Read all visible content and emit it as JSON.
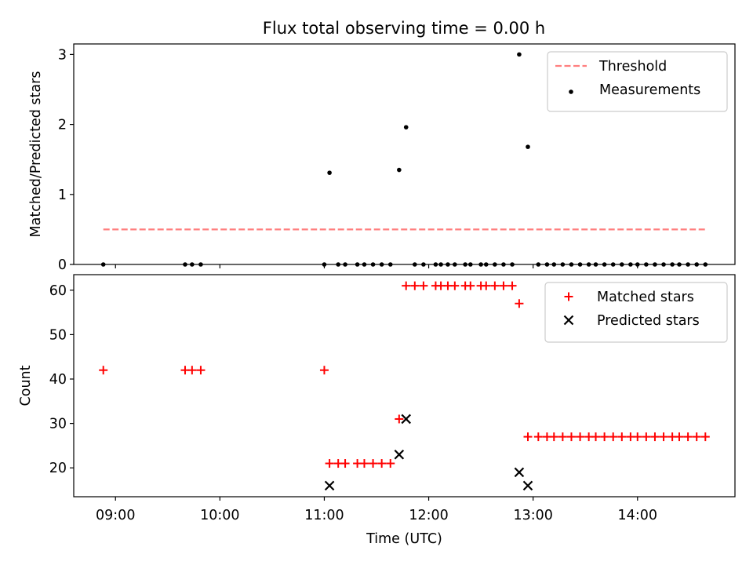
{
  "chart_data": [
    {
      "type": "scatter",
      "title": "Flux total observing time = 0.00 h",
      "xlabel": "",
      "ylabel": "Matched/Predicted stars",
      "xlim": [
        "08:36",
        "14:56"
      ],
      "ylim": [
        0,
        3.15
      ],
      "yticks": [
        0,
        1,
        2,
        3
      ],
      "xticks": [
        "09:00",
        "10:00",
        "11:00",
        "12:00",
        "13:00",
        "14:00"
      ],
      "tick_labels_x_shown": false,
      "legend_position": "upper right",
      "threshold": {
        "name": "Threshold",
        "value": 0.5,
        "x_start": "08:53",
        "x_end": "14:39",
        "color": "#ff7f7f",
        "style": "dashed"
      },
      "series": [
        {
          "name": "Measurements",
          "color": "#000000",
          "marker": "dot",
          "points": [
            [
              "08:53",
              0
            ],
            [
              "09:40",
              0
            ],
            [
              "09:44",
              0
            ],
            [
              "09:49",
              0
            ],
            [
              "11:00",
              0
            ],
            [
              "11:03",
              1.31
            ],
            [
              "11:08",
              0
            ],
            [
              "11:12",
              0
            ],
            [
              "11:19",
              0
            ],
            [
              "11:23",
              0
            ],
            [
              "11:28",
              0
            ],
            [
              "11:33",
              0
            ],
            [
              "11:38",
              0
            ],
            [
              "11:43",
              1.35
            ],
            [
              "11:47",
              1.96
            ],
            [
              "11:52",
              0
            ],
            [
              "11:57",
              0
            ],
            [
              "12:04",
              0
            ],
            [
              "12:07",
              0
            ],
            [
              "12:11",
              0
            ],
            [
              "12:15",
              0
            ],
            [
              "12:21",
              0
            ],
            [
              "12:24",
              0
            ],
            [
              "12:30",
              0
            ],
            [
              "12:33",
              0
            ],
            [
              "12:38",
              0
            ],
            [
              "12:43",
              0
            ],
            [
              "12:48",
              0
            ],
            [
              "12:52",
              3.0
            ],
            [
              "12:57",
              1.68
            ],
            [
              "13:03",
              0
            ],
            [
              "13:08",
              0
            ],
            [
              "13:12",
              0
            ],
            [
              "13:17",
              0
            ],
            [
              "13:22",
              0
            ],
            [
              "13:27",
              0
            ],
            [
              "13:32",
              0
            ],
            [
              "13:36",
              0
            ],
            [
              "13:41",
              0
            ],
            [
              "13:46",
              0
            ],
            [
              "13:51",
              0
            ],
            [
              "13:56",
              0
            ],
            [
              "14:00",
              0
            ],
            [
              "14:05",
              0
            ],
            [
              "14:10",
              0
            ],
            [
              "14:15",
              0
            ],
            [
              "14:20",
              0
            ],
            [
              "14:24",
              0
            ],
            [
              "14:29",
              0
            ],
            [
              "14:34",
              0
            ],
            [
              "14:39",
              0
            ]
          ]
        }
      ]
    },
    {
      "type": "scatter",
      "title": "",
      "xlabel": "Time (UTC)",
      "ylabel": "Count",
      "xlim": [
        "08:36",
        "14:56"
      ],
      "ylim": [
        13.5,
        63.5
      ],
      "yticks": [
        20,
        30,
        40,
        50,
        60
      ],
      "xticks": [
        "09:00",
        "10:00",
        "11:00",
        "12:00",
        "13:00",
        "14:00"
      ],
      "legend_position": "upper right",
      "series": [
        {
          "name": "Matched stars",
          "color": "#ff0000",
          "marker": "plus",
          "points": [
            [
              "08:53",
              42
            ],
            [
              "09:40",
              42
            ],
            [
              "09:44",
              42
            ],
            [
              "09:49",
              42
            ],
            [
              "11:00",
              42
            ],
            [
              "11:03",
              21
            ],
            [
              "11:08",
              21
            ],
            [
              "11:12",
              21
            ],
            [
              "11:19",
              21
            ],
            [
              "11:23",
              21
            ],
            [
              "11:28",
              21
            ],
            [
              "11:33",
              21
            ],
            [
              "11:38",
              21
            ],
            [
              "11:43",
              31
            ],
            [
              "11:47",
              61
            ],
            [
              "11:52",
              61
            ],
            [
              "11:57",
              61
            ],
            [
              "12:04",
              61
            ],
            [
              "12:07",
              61
            ],
            [
              "12:11",
              61
            ],
            [
              "12:15",
              61
            ],
            [
              "12:21",
              61
            ],
            [
              "12:24",
              61
            ],
            [
              "12:30",
              61
            ],
            [
              "12:33",
              61
            ],
            [
              "12:38",
              61
            ],
            [
              "12:43",
              61
            ],
            [
              "12:48",
              61
            ],
            [
              "12:52",
              57
            ],
            [
              "12:57",
              27
            ],
            [
              "13:03",
              27
            ],
            [
              "13:08",
              27
            ],
            [
              "13:12",
              27
            ],
            [
              "13:17",
              27
            ],
            [
              "13:22",
              27
            ],
            [
              "13:27",
              27
            ],
            [
              "13:32",
              27
            ],
            [
              "13:36",
              27
            ],
            [
              "13:41",
              27
            ],
            [
              "13:46",
              27
            ],
            [
              "13:51",
              27
            ],
            [
              "13:56",
              27
            ],
            [
              "14:00",
              27
            ],
            [
              "14:05",
              27
            ],
            [
              "14:10",
              27
            ],
            [
              "14:15",
              27
            ],
            [
              "14:20",
              27
            ],
            [
              "14:24",
              27
            ],
            [
              "14:29",
              27
            ],
            [
              "14:34",
              27
            ],
            [
              "14:39",
              27
            ]
          ]
        },
        {
          "name": "Predicted stars",
          "color": "#000000",
          "marker": "x",
          "points": [
            [
              "11:03",
              16
            ],
            [
              "11:43",
              23
            ],
            [
              "11:47",
              31
            ],
            [
              "12:52",
              19
            ],
            [
              "12:57",
              16
            ]
          ]
        }
      ]
    }
  ]
}
